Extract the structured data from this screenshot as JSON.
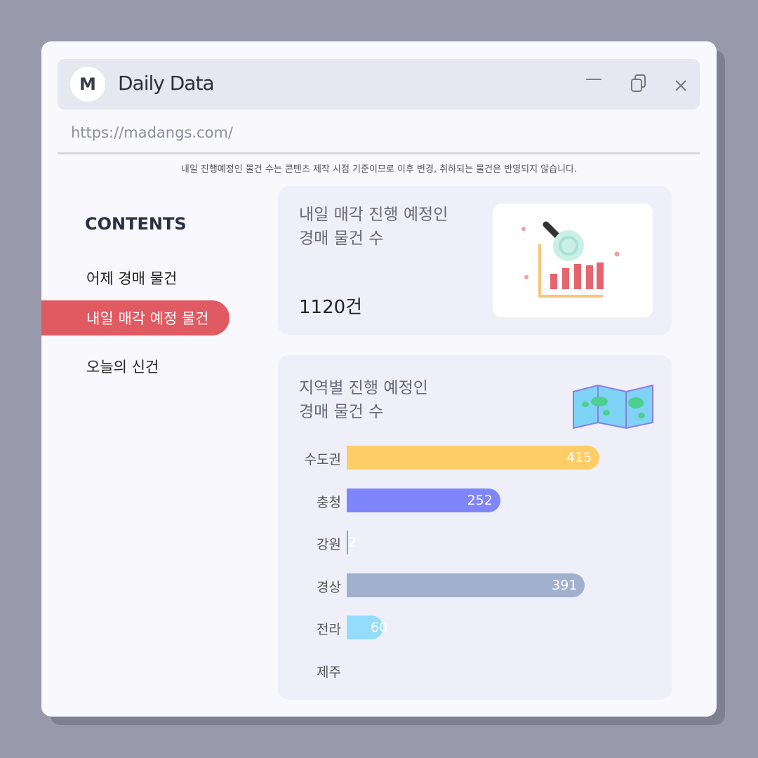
{
  "window": {
    "logo_letter": "M",
    "title": "Daily Data",
    "url": "https://madangs.com/",
    "minimize_icon": "minimize-icon",
    "restore_icon": "restore-icon",
    "close_icon": "close-icon"
  },
  "notice": "내일 진행예정인 물건 수는 콘텐츠 제작 시점 기준이므로 이후 변경, 취하되는 물건은 반영되지 않습니다.",
  "sidebar": {
    "heading": "CONTENTS",
    "items": [
      {
        "label": "어제 경매 물건"
      },
      {
        "label": "내일 매각 예정 물건",
        "selected": true
      },
      {
        "label": "오늘의 신건"
      }
    ]
  },
  "card1": {
    "title": "내일 매각 진행 예정인\n경매 물건 수",
    "count": "1120건",
    "icon": "bar-chart-magnifier-icon"
  },
  "card2": {
    "title": "지역별 진행 예정인\n경매 물건 수",
    "icon": "map-icon"
  },
  "chart_data": {
    "type": "bar",
    "orientation": "horizontal",
    "categories": [
      "수도권",
      "충청",
      "강원",
      "경상",
      "전라",
      "제주"
    ],
    "values": [
      415,
      252,
      2,
      391,
      60,
      0
    ],
    "colors": [
      "#ffcd66",
      "#7f86fb",
      "#3ccf9a",
      "#a1b1cd",
      "#94dcfb",
      "#cccccc"
    ]
  }
}
